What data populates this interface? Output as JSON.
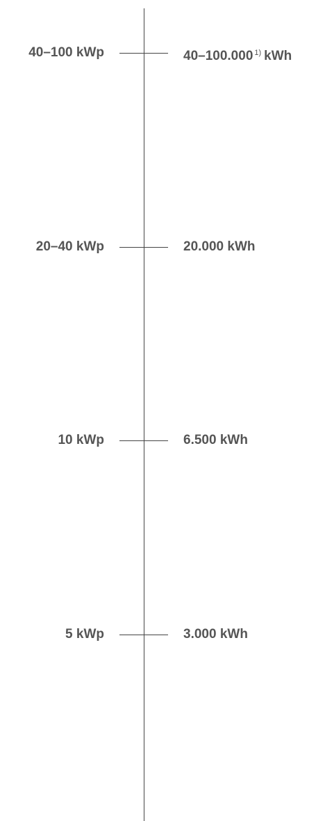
{
  "rows": [
    {
      "left": "40–100 kWp",
      "right": "40–100.000",
      "footnote": "1)",
      "right_unit": "kWh"
    },
    {
      "left": "20–40 kWp",
      "right": "20.000 kWh"
    },
    {
      "left": "10 kWp",
      "right": "6.500 kWh"
    },
    {
      "left": "5 kWp",
      "right": "3.000 kWh"
    }
  ]
}
